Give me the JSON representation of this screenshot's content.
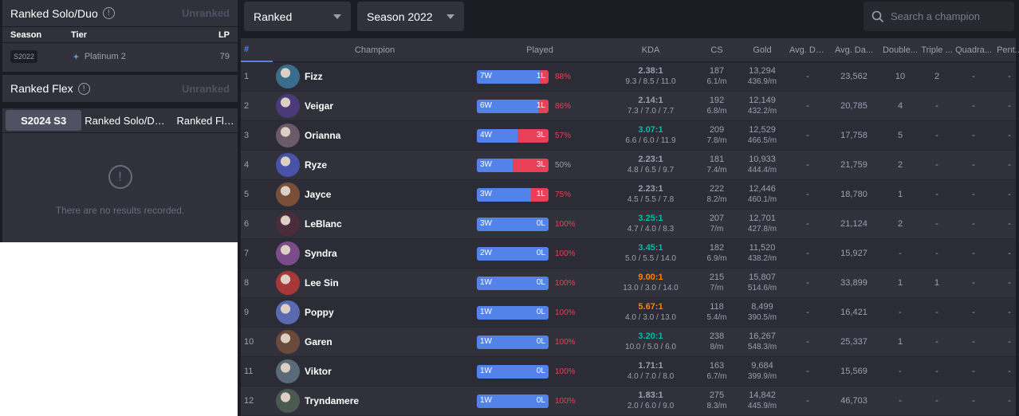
{
  "left": {
    "solo": {
      "title": "Ranked Solo/Duo",
      "status": "Unranked",
      "columns": {
        "season": "Season",
        "tier": "Tier",
        "lp": "LP"
      },
      "row": {
        "season": "S2022",
        "tier": "Platinum 2",
        "lp": "79"
      }
    },
    "flex": {
      "title": "Ranked Flex",
      "status": "Unranked"
    },
    "tabs": [
      "S2024 S3",
      "Ranked Solo/Duo",
      "Ranked Flex"
    ],
    "empty_message": "There are no results recorded."
  },
  "toolbar": {
    "queue": "Ranked",
    "season": "Season 2022",
    "search_placeholder": "Search a champion"
  },
  "table": {
    "headers": {
      "rank": "#",
      "champion": "Champion",
      "played": "Played",
      "kda": "KDA",
      "cs": "CS",
      "gold": "Gold",
      "avg_dmg_taken": "Avg. Da...",
      "avg_dmg_dealt": "Avg. Da...",
      "double": "Double...",
      "triple": "Triple ...",
      "quadra": "Quadra...",
      "penta": "Pent..."
    },
    "colors": {
      "win": "#5383e8",
      "loss": "#e84057",
      "kda_teal": "#00bba3",
      "kda_orange": "#ff8200",
      "kda_gray": "#9e9eb1",
      "wr_red": "#e84057"
    },
    "rows": [
      {
        "rank": "1",
        "champion": "Fizz",
        "avatar": "#3a6d8c",
        "w": "7W",
        "l": "1L",
        "wins": 7,
        "losses": 1,
        "wr": "88%",
        "kda_ratio": "2.38:1",
        "kda_line": "9.3 / 8.5 / 11.0",
        "kda_color": "#9e9eb1",
        "cs": "187",
        "cs_min": "6.1/m",
        "gold": "13,294",
        "gold_min": "436.9/m",
        "avg1": "-",
        "avg2": "23,562",
        "dbl": "10",
        "tri": "2",
        "qua": "-",
        "pen": "-"
      },
      {
        "rank": "2",
        "champion": "Veigar",
        "avatar": "#4a3a7a",
        "w": "6W",
        "l": "1L",
        "wins": 6,
        "losses": 1,
        "wr": "86%",
        "kda_ratio": "2.14:1",
        "kda_line": "7.3 / 7.0 / 7.7",
        "kda_color": "#9e9eb1",
        "cs": "192",
        "cs_min": "6.8/m",
        "gold": "12,149",
        "gold_min": "432.2/m",
        "avg1": "-",
        "avg2": "20,785",
        "dbl": "4",
        "tri": "-",
        "qua": "-",
        "pen": "-"
      },
      {
        "rank": "3",
        "champion": "Orianna",
        "avatar": "#6b5a68",
        "w": "4W",
        "l": "3L",
        "wins": 4,
        "losses": 3,
        "wr": "57%",
        "kda_ratio": "3.07:1",
        "kda_line": "6.6 / 6.0 / 11.9",
        "kda_color": "#00bba3",
        "cs": "209",
        "cs_min": "7.8/m",
        "gold": "12,529",
        "gold_min": "466.5/m",
        "avg1": "-",
        "avg2": "17,758",
        "dbl": "5",
        "tri": "-",
        "qua": "-",
        "pen": "-"
      },
      {
        "rank": "4",
        "champion": "Ryze",
        "avatar": "#4752a8",
        "w": "3W",
        "l": "3L",
        "wins": 3,
        "losses": 3,
        "wr": "50%",
        "kda_ratio": "2.23:1",
        "kda_line": "4.8 / 6.5 / 9.7",
        "kda_color": "#9e9eb1",
        "cs": "181",
        "cs_min": "7.4/m",
        "gold": "10,933",
        "gold_min": "444.4/m",
        "avg1": "-",
        "avg2": "21,759",
        "dbl": "2",
        "tri": "-",
        "qua": "-",
        "pen": "-"
      },
      {
        "rank": "5",
        "champion": "Jayce",
        "avatar": "#7a4f3a",
        "w": "3W",
        "l": "1L",
        "wins": 3,
        "losses": 1,
        "wr": "75%",
        "kda_ratio": "2.23:1",
        "kda_line": "4.5 / 5.5 / 7.8",
        "kda_color": "#9e9eb1",
        "cs": "222",
        "cs_min": "8.2/m",
        "gold": "12,446",
        "gold_min": "460.1/m",
        "avg1": "-",
        "avg2": "18,780",
        "dbl": "1",
        "tri": "-",
        "qua": "-",
        "pen": "-"
      },
      {
        "rank": "6",
        "champion": "LeBlanc",
        "avatar": "#4a2c3a",
        "w": "3W",
        "l": "0L",
        "wins": 3,
        "losses": 0,
        "wr": "100%",
        "kda_ratio": "3.25:1",
        "kda_line": "4.7 / 4.0 / 8.3",
        "kda_color": "#00bba3",
        "cs": "207",
        "cs_min": "7/m",
        "gold": "12,701",
        "gold_min": "427.8/m",
        "avg1": "-",
        "avg2": "21,124",
        "dbl": "2",
        "tri": "-",
        "qua": "-",
        "pen": "-"
      },
      {
        "rank": "7",
        "champion": "Syndra",
        "avatar": "#7a4c8a",
        "w": "2W",
        "l": "0L",
        "wins": 2,
        "losses": 0,
        "wr": "100%",
        "kda_ratio": "3.45:1",
        "kda_line": "5.0 / 5.5 / 14.0",
        "kda_color": "#00bba3",
        "cs": "182",
        "cs_min": "6.9/m",
        "gold": "11,520",
        "gold_min": "438.2/m",
        "avg1": "-",
        "avg2": "15,927",
        "dbl": "-",
        "tri": "-",
        "qua": "-",
        "pen": "-"
      },
      {
        "rank": "8",
        "champion": "Lee Sin",
        "avatar": "#a83838",
        "w": "1W",
        "l": "0L",
        "wins": 1,
        "losses": 0,
        "wr": "100%",
        "kda_ratio": "9.00:1",
        "kda_line": "13.0 / 3.0 / 14.0",
        "kda_color": "#ff8200",
        "cs": "215",
        "cs_min": "7/m",
        "gold": "15,807",
        "gold_min": "514.6/m",
        "avg1": "-",
        "avg2": "33,899",
        "dbl": "1",
        "tri": "1",
        "qua": "-",
        "pen": "-"
      },
      {
        "rank": "9",
        "champion": "Poppy",
        "avatar": "#5a6ab0",
        "w": "1W",
        "l": "0L",
        "wins": 1,
        "losses": 0,
        "wr": "100%",
        "kda_ratio": "5.67:1",
        "kda_line": "4.0 / 3.0 / 13.0",
        "kda_color": "#ff8200",
        "cs": "118",
        "cs_min": "5.4/m",
        "gold": "8,499",
        "gold_min": "390.5/m",
        "avg1": "-",
        "avg2": "16,421",
        "dbl": "-",
        "tri": "-",
        "qua": "-",
        "pen": "-"
      },
      {
        "rank": "10",
        "champion": "Garen",
        "avatar": "#6a4a3a",
        "w": "1W",
        "l": "0L",
        "wins": 1,
        "losses": 0,
        "wr": "100%",
        "kda_ratio": "3.20:1",
        "kda_line": "10.0 / 5.0 / 6.0",
        "kda_color": "#00bba3",
        "cs": "238",
        "cs_min": "8/m",
        "gold": "16,267",
        "gold_min": "548.3/m",
        "avg1": "-",
        "avg2": "25,337",
        "dbl": "1",
        "tri": "-",
        "qua": "-",
        "pen": "-"
      },
      {
        "rank": "11",
        "champion": "Viktor",
        "avatar": "#5a6a78",
        "w": "1W",
        "l": "0L",
        "wins": 1,
        "losses": 0,
        "wr": "100%",
        "kda_ratio": "1.71:1",
        "kda_line": "4.0 / 7.0 / 8.0",
        "kda_color": "#9e9eb1",
        "cs": "163",
        "cs_min": "6.7/m",
        "gold": "9,684",
        "gold_min": "399.9/m",
        "avg1": "-",
        "avg2": "15,569",
        "dbl": "-",
        "tri": "-",
        "qua": "-",
        "pen": "-"
      },
      {
        "rank": "12",
        "champion": "Tryndamere",
        "avatar": "#4a5a50",
        "w": "1W",
        "l": "0L",
        "wins": 1,
        "losses": 0,
        "wr": "100%",
        "kda_ratio": "1.83:1",
        "kda_line": "2.0 / 6.0 / 9.0",
        "kda_color": "#9e9eb1",
        "cs": "275",
        "cs_min": "8.3/m",
        "gold": "14,842",
        "gold_min": "445.9/m",
        "avg1": "-",
        "avg2": "46,703",
        "dbl": "-",
        "tri": "-",
        "qua": "-",
        "pen": "-"
      }
    ]
  }
}
